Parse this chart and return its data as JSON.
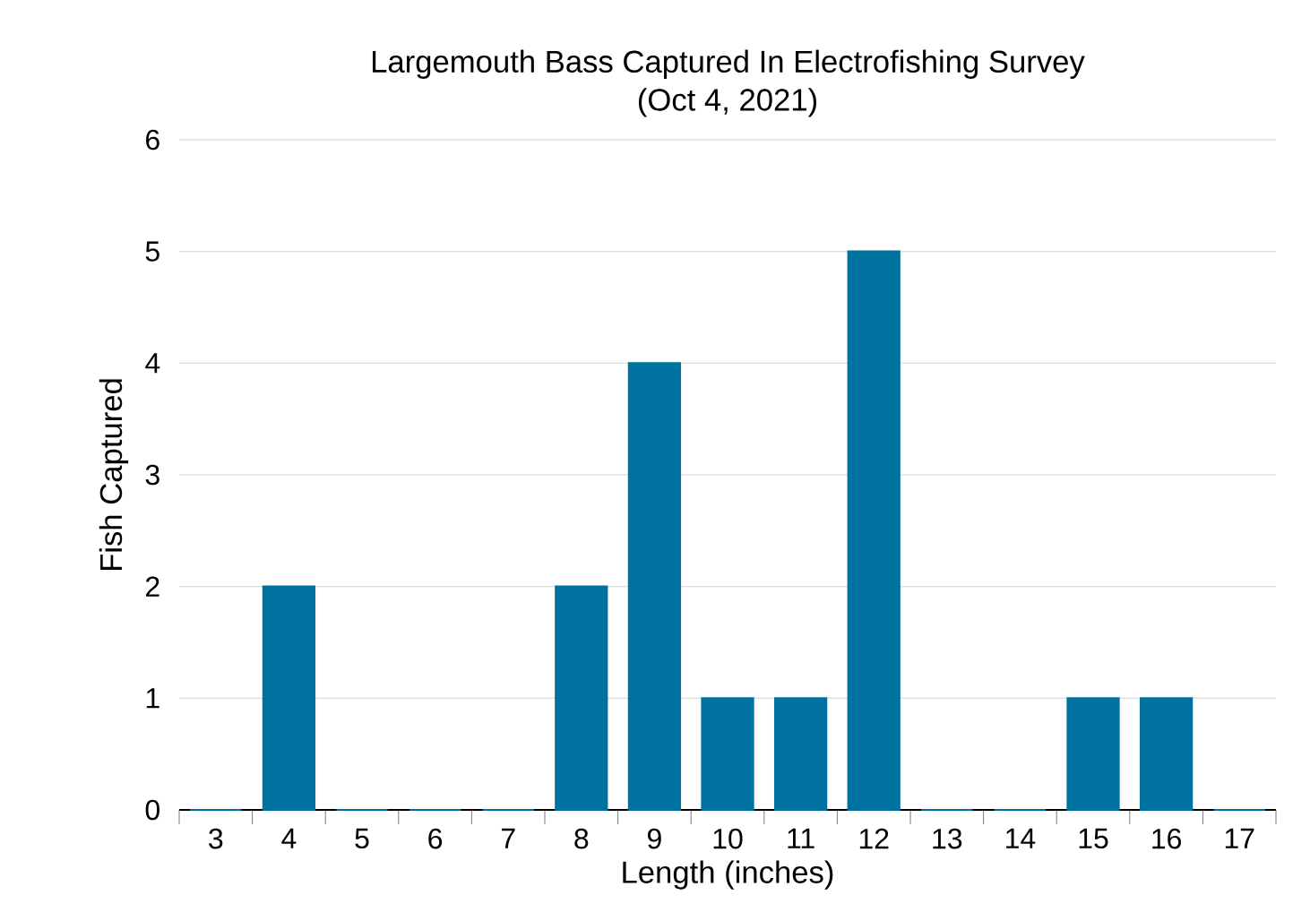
{
  "chart_data": {
    "type": "bar",
    "title": "Largemouth Bass Captured In Electrofishing Survey",
    "subtitle": "(Oct 4, 2021)",
    "xlabel": "Length (inches)",
    "ylabel": "Fish Captured",
    "categories": [
      "3",
      "4",
      "5",
      "6",
      "7",
      "8",
      "9",
      "10",
      "11",
      "12",
      "13",
      "14",
      "15",
      "16",
      "17"
    ],
    "values": [
      0,
      2,
      0,
      0,
      0,
      2,
      4,
      1,
      1,
      5,
      0,
      0,
      1,
      1,
      0
    ],
    "color": "#00729f",
    "ylim": [
      0,
      6
    ],
    "yticks": [
      0,
      1,
      2,
      3,
      4,
      5,
      6
    ],
    "grid": "y"
  }
}
